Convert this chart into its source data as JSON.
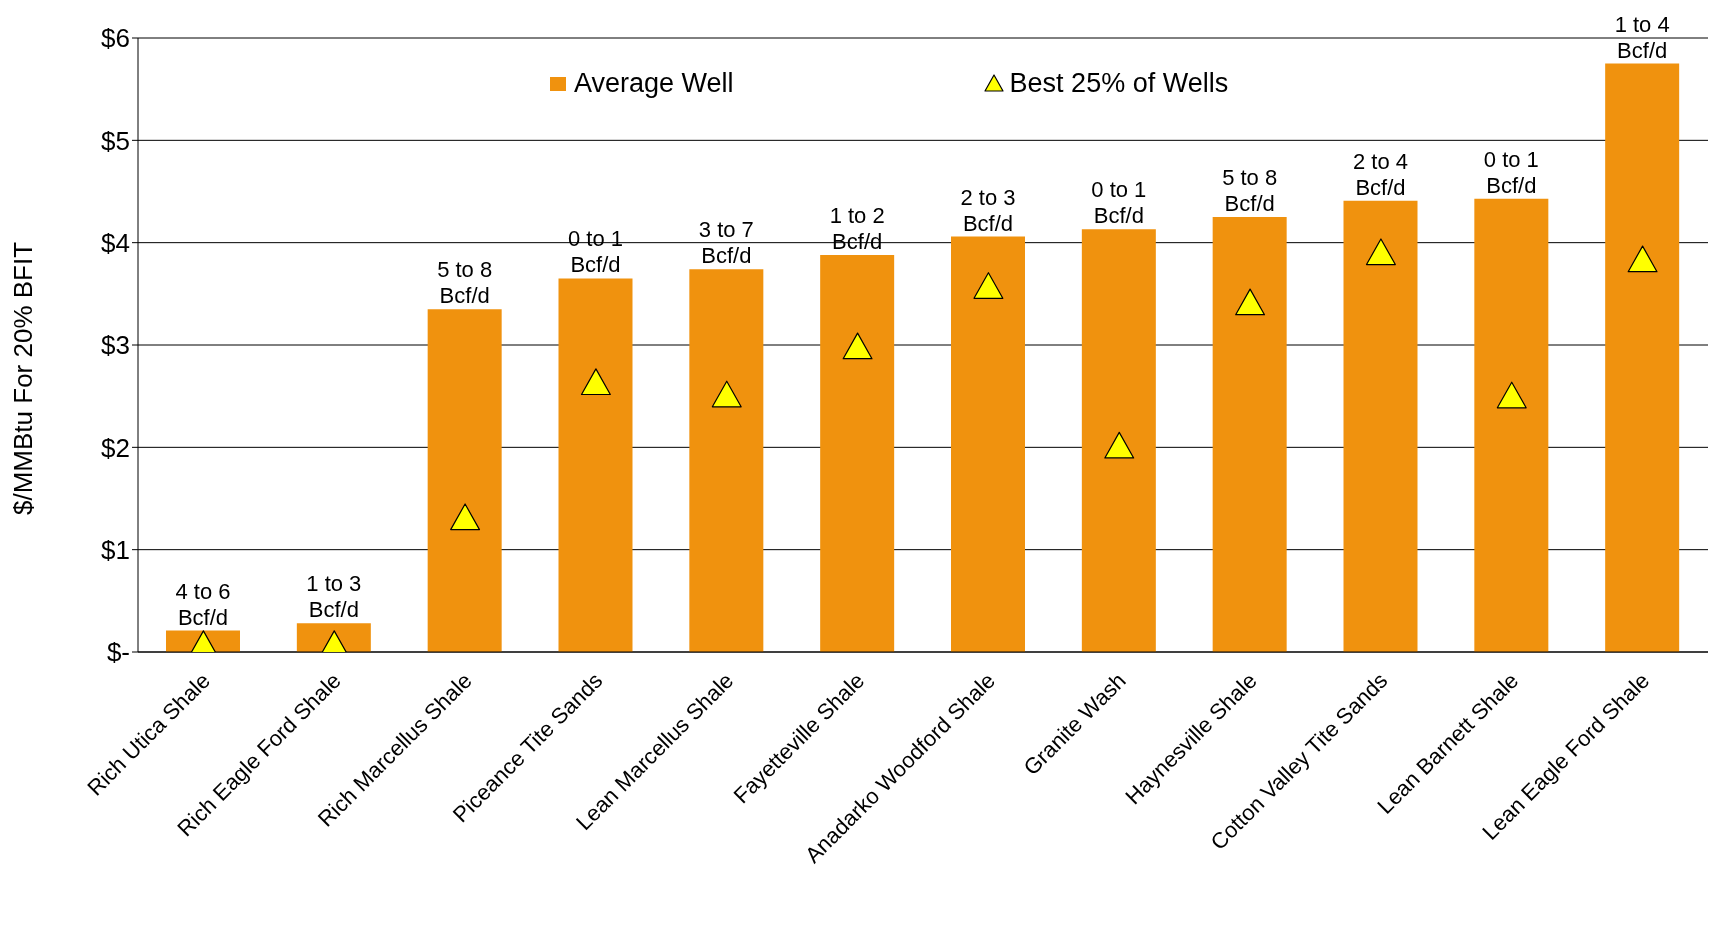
{
  "chart_data": {
    "type": "bar",
    "ylabel": "$/MMBtu For 20% BFIT",
    "categories": [
      "Rich Utica Shale",
      "Rich Eagle Ford Shale",
      "Rich Marcellus Shale",
      "Piceance Tite Sands",
      "Lean Marcellus Shale",
      "Fayetteville Shale",
      "Anadarko Woodford Shale",
      "Granite Wash",
      "Haynesville Shale",
      "Cotton Valley Tite Sands",
      "Lean Barnett Shale",
      "Lean Eagle Ford Shale"
    ],
    "series": [
      {
        "name": "Average Well",
        "color": "#f0920e",
        "values": [
          0.21,
          0.28,
          3.35,
          3.65,
          3.74,
          3.88,
          4.06,
          4.13,
          4.25,
          4.41,
          4.43,
          5.75
        ]
      },
      {
        "name": "Best 25% of Wells",
        "type": "scatter",
        "marker": "triangle",
        "color": "#ffff00",
        "values": [
          0.05,
          0.05,
          1.29,
          2.61,
          2.49,
          2.96,
          3.55,
          1.99,
          3.39,
          3.88,
          2.48,
          3.81
        ]
      }
    ],
    "ylim": [
      0,
      6
    ],
    "yticks": [
      {
        "value": 0,
        "label": "$-"
      },
      {
        "value": 1,
        "label": "$1"
      },
      {
        "value": 2,
        "label": "$2"
      },
      {
        "value": 3,
        "label": "$3"
      },
      {
        "value": 4,
        "label": "$4"
      },
      {
        "value": 5,
        "label": "$5"
      },
      {
        "value": 6,
        "label": "$6"
      }
    ],
    "grid": "y",
    "legend": "top",
    "annotations": [
      {
        "text": "4 to 6\nBcf/d",
        "x": "Rich Utica Shale",
        "y": 0.21
      },
      {
        "text": "1 to 3\nBcf/d",
        "x": "Rich Eagle Ford Shale",
        "y": 0.28
      },
      {
        "text": "5 to 8\nBcf/d",
        "x": "Rich Marcellus Shale",
        "y": 3.35
      },
      {
        "text": "0 to 1\nBcf/d",
        "x": "Piceance Tite Sands",
        "y": 3.65
      },
      {
        "text": "3 to 7\nBcf/d",
        "x": "Lean Marcellus Shale",
        "y": 3.74
      },
      {
        "text": "1 to 2\nBcf/d",
        "x": "Fayetteville Shale",
        "y": 3.88
      },
      {
        "text": "2 to 3\nBcf/d",
        "x": "Anadarko Woodford Shale",
        "y": 4.06
      },
      {
        "text": "0 to 1\nBcf/d",
        "x": "Granite Wash",
        "y": 4.13
      },
      {
        "text": "5 to 8\nBcf/d",
        "x": "Haynesville Shale",
        "y": 4.25
      },
      {
        "text": "2 to 4\nBcf/d",
        "x": "Cotton Valley Tite Sands",
        "y": 4.41
      },
      {
        "text": "0 to 1\nBcf/d",
        "x": "Lean Barnett Shale",
        "y": 4.43
      },
      {
        "text": "1 to 4\nBcf/d",
        "x": "Lean Eagle Ford Shale",
        "y": 5.75
      }
    ]
  }
}
